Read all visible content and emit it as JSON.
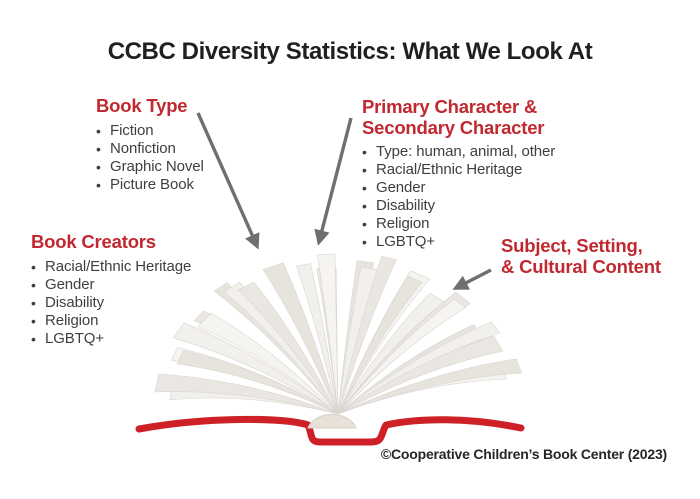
{
  "title": "CCBC Diversity Statistics: What We Look At",
  "colors": {
    "heading_red": "#c2282f",
    "cover_red": "#ce2127",
    "arrow_gray": "#6f6f6f",
    "title_ink": "#221f20",
    "body_ink": "#3f3e40",
    "page_fill": "#f1efeb"
  },
  "sections": {
    "book_type": {
      "heading": "Book Type",
      "items": [
        "Fiction",
        "Nonfiction",
        "Graphic Novel",
        "Picture Book"
      ]
    },
    "primary_secondary": {
      "heading_line1": "Primary Character &",
      "heading_line2": "Secondary Character",
      "items": [
        "Type: human, animal, other",
        "Racial/Ethnic Heritage",
        "Gender",
        "Disability",
        "Religion",
        "LGBTQ+"
      ]
    },
    "book_creators": {
      "heading": "Book Creators",
      "items": [
        "Racial/Ethnic Heritage",
        "Gender",
        "Disability",
        "Religion",
        "LGBTQ+"
      ]
    },
    "subject_setting": {
      "heading_line1": "Subject, Setting,",
      "heading_line2": "& Cultural Content"
    }
  },
  "footer": {
    "credit": "©Cooperative Children’s Book Center (2023)"
  }
}
